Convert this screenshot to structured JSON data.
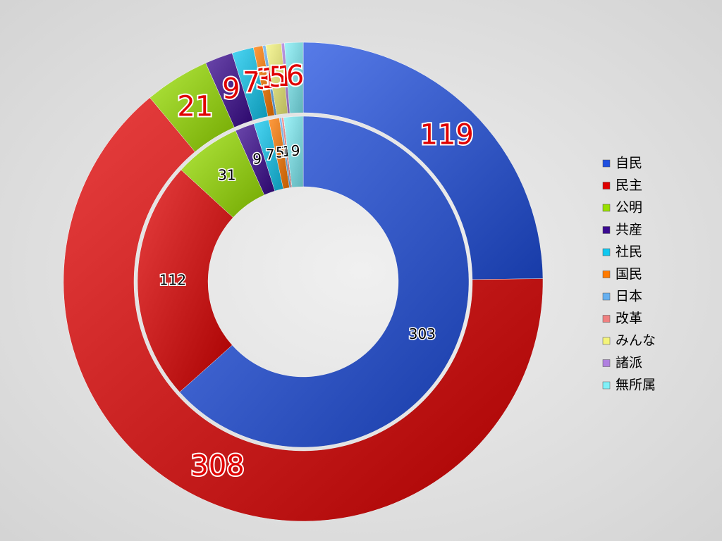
{
  "chart_data": {
    "type": "donut",
    "categories": [
      "自民",
      "民主",
      "公明",
      "共産",
      "社民",
      "国民",
      "日本",
      "改革",
      "みんな",
      "諸派",
      "無所属"
    ],
    "colors": [
      "#1f4fe0",
      "#e00000",
      "#99e000",
      "#3a0a90",
      "#10c8f0",
      "#ff7a00",
      "#66b0f0",
      "#f08080",
      "#f4f47a",
      "#b080e0",
      "#80f0f8"
    ],
    "series": [
      {
        "values": [
          303,
          112,
          31,
          9,
          7,
          5,
          1,
          1,
          0,
          0,
          9
        ]
      },
      {
        "values": [
          119,
          308,
          21,
          9,
          7,
          3,
          1,
          0,
          5,
          1,
          6
        ]
      }
    ]
  }
}
